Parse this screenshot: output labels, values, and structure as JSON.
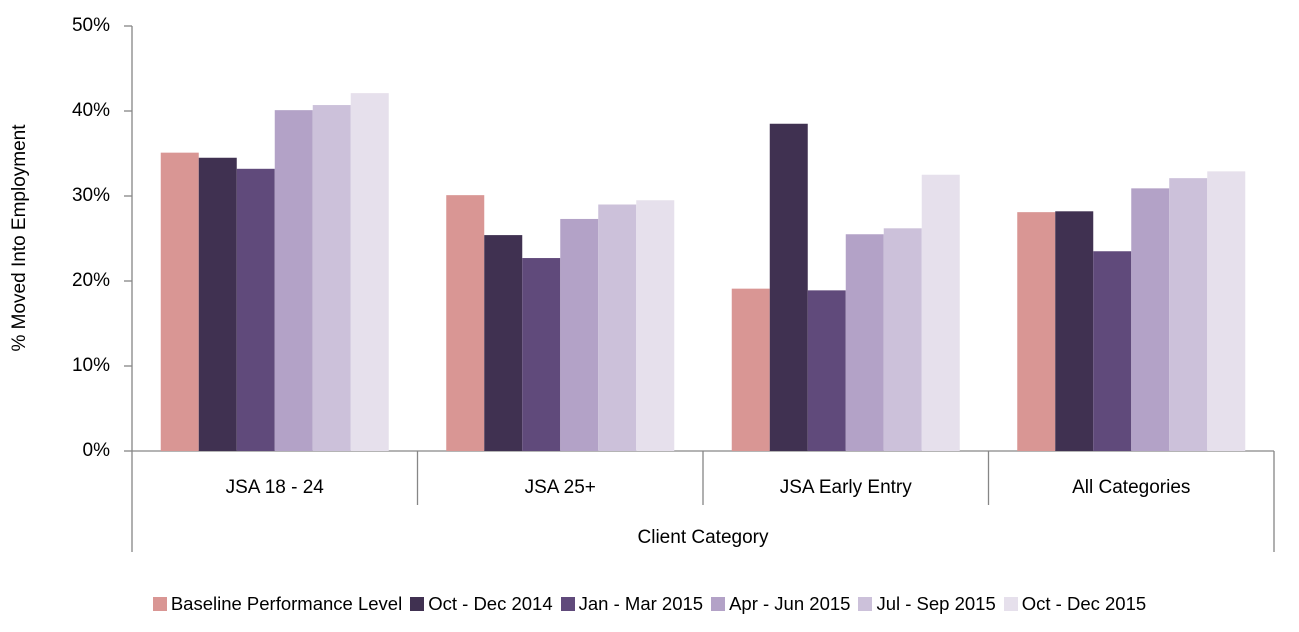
{
  "chart_data": {
    "type": "bar",
    "y_label": "% Moved Into Employment",
    "x_label": "Client Category",
    "categories": [
      "JSA 18 - 24",
      "JSA 25+",
      "JSA Early Entry",
      "All Categories"
    ],
    "series": [
      {
        "name": "Baseline Performance Level",
        "color": "#d99694",
        "values": [
          35.1,
          30.1,
          19.1,
          28.1
        ]
      },
      {
        "name": "Oct - Dec 2014",
        "color": "#403151",
        "values": [
          34.5,
          25.4,
          38.5,
          28.2
        ]
      },
      {
        "name": "Jan - Mar 2015",
        "color": "#604a7b",
        "values": [
          33.2,
          22.7,
          18.9,
          23.5
        ]
      },
      {
        "name": "Apr - Jun 2015",
        "color": "#b3a2c7",
        "values": [
          40.1,
          27.3,
          25.5,
          30.9
        ]
      },
      {
        "name": "Jul - Sep 2015",
        "color": "#ccc1da",
        "values": [
          40.7,
          29.0,
          26.2,
          32.1
        ]
      },
      {
        "name": "Oct - Dec 2015",
        "color": "#e6e0ec",
        "values": [
          42.1,
          29.5,
          32.5,
          32.9
        ]
      }
    ],
    "ylim": [
      0,
      50
    ],
    "yticks": [
      {
        "value": 0,
        "label": "0%"
      },
      {
        "value": 10,
        "label": "10%"
      },
      {
        "value": 20,
        "label": "20%"
      },
      {
        "value": 30,
        "label": "30%"
      },
      {
        "value": 40,
        "label": "40%"
      },
      {
        "value": 50,
        "label": "50%"
      }
    ],
    "legend": "bottom"
  }
}
